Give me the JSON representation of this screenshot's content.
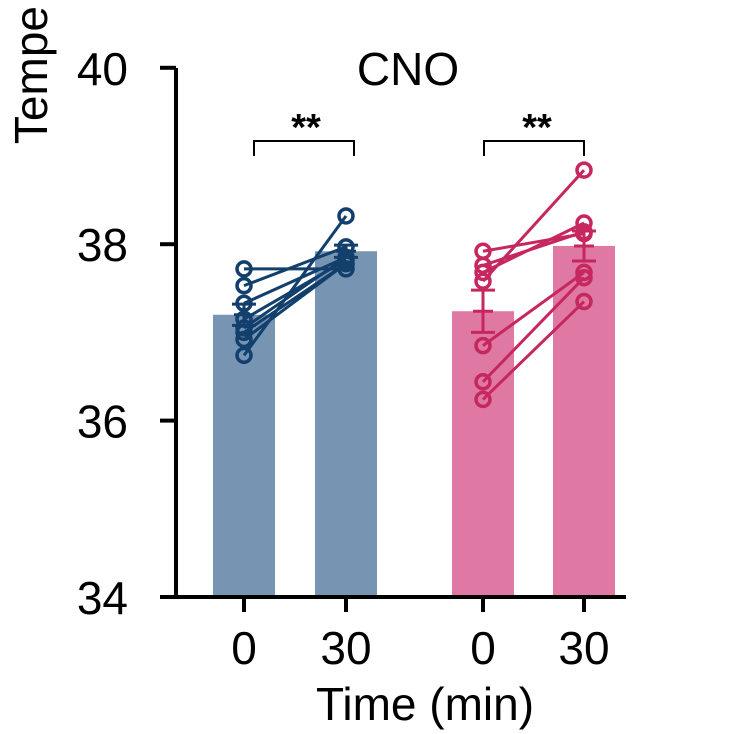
{
  "chart_data": {
    "type": "bar",
    "title": "CNO",
    "xlabel": "Time (min)",
    "ylabel": "Tempe",
    "ylim": [
      34,
      40
    ],
    "yticks": [
      "34",
      "36",
      "38",
      "40"
    ],
    "categories": [
      "0",
      "30",
      "0",
      "30"
    ],
    "significance": [
      "**",
      "**"
    ],
    "groups": [
      {
        "bar_color": "#7795B3",
        "line_color": "#123F6C",
        "means": [
          37.2,
          37.92
        ],
        "sem": [
          0.12,
          0.07
        ],
        "pairs": [
          [
            37.72,
            37.72
          ],
          [
            37.53,
            37.97
          ],
          [
            37.33,
            37.85
          ],
          [
            37.15,
            37.82
          ],
          [
            37.05,
            37.85
          ],
          [
            36.92,
            37.78
          ],
          [
            36.74,
            38.32
          ],
          [
            37.0,
            37.78
          ]
        ]
      },
      {
        "bar_color": "#DF78A3",
        "line_color": "#C5275E",
        "means": [
          37.24,
          37.98
        ],
        "sem": [
          0.24,
          0.17
        ],
        "pairs": [
          [
            37.92,
            38.12
          ],
          [
            37.76,
            38.14
          ],
          [
            37.68,
            38.24
          ],
          [
            37.58,
            38.84
          ],
          [
            36.85,
            37.68
          ],
          [
            36.44,
            37.62
          ],
          [
            36.24,
            37.35
          ]
        ]
      }
    ]
  }
}
